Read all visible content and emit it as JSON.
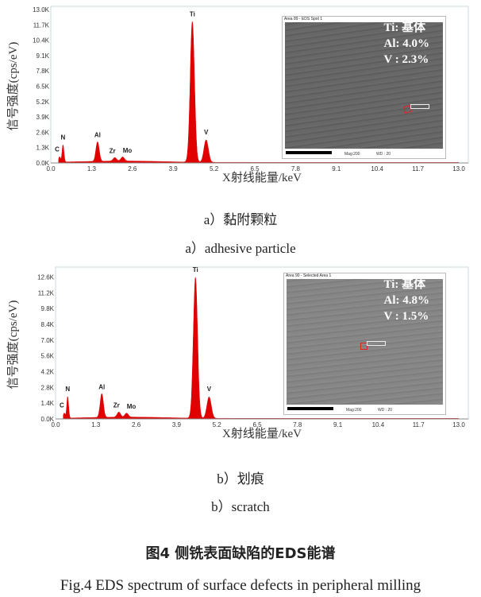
{
  "chart_data": [
    {
      "type": "area",
      "xlabel": "X射线能量/keV",
      "ylabel": "信号强度(cps/eV)",
      "xlim": [
        0,
        13.0
      ],
      "ylim": [
        0,
        13.0
      ],
      "x_ticks": [
        "0.0",
        "1.3",
        "2.6",
        "3.9",
        "5.2",
        "6.5",
        "7.8",
        "9.1",
        "10.4",
        "11.7",
        "13.0"
      ],
      "y_ticks": [
        "0.0K",
        "1.3K",
        "2.6K",
        "3.9K",
        "5.2K",
        "6.5K",
        "7.8K",
        "9.1K",
        "10.4K",
        "11.7K",
        "13.0K"
      ],
      "color": "#e00000",
      "peaks": [
        {
          "label": "C",
          "energy_keV": 0.28,
          "height_K": 0.45
        },
        {
          "label": "N",
          "energy_keV": 0.39,
          "height_K": 1.45
        },
        {
          "label": "Al",
          "energy_keV": 1.49,
          "height_K": 1.65
        },
        {
          "label": "Zr",
          "energy_keV": 2.04,
          "height_K": 0.3
        },
        {
          "label": "Mo",
          "energy_keV": 2.29,
          "height_K": 0.35
        },
        {
          "label": "Ti",
          "energy_keV": 4.51,
          "height_K": 11.9
        },
        {
          "label": "V",
          "energy_keV": 4.95,
          "height_K": 1.9
        }
      ],
      "inset": {
        "header": "Area 89 - EDS Spot 1",
        "composition": [
          "Ti: 基体",
          "Al: 4.0%",
          "V : 2.3%"
        ],
        "mag": "Mag:200",
        "wd": "WD : 20"
      },
      "caption_cn": "a）黏附颗粒",
      "caption_en": "a）adhesive particle"
    },
    {
      "type": "area",
      "xlabel": "X射线能量/keV",
      "ylabel": "信号强度(cps/eV)",
      "xlim": [
        0,
        13.0
      ],
      "ylim": [
        0,
        13.2
      ],
      "x_ticks": [
        "0.0",
        "1.3",
        "2.6",
        "3.9",
        "5.2",
        "6.5",
        "7.8",
        "9.1",
        "10.4",
        "11.7",
        "13.0"
      ],
      "y_ticks": [
        "0.0K",
        "1.4K",
        "2.8K",
        "4.2K",
        "5.6K",
        "7.0K",
        "8.4K",
        "9.8K",
        "11.2K",
        "12.6K"
      ],
      "color": "#e00000",
      "peaks": [
        {
          "label": "C",
          "energy_keV": 0.28,
          "height_K": 0.45
        },
        {
          "label": "N",
          "energy_keV": 0.39,
          "height_K": 1.9
        },
        {
          "label": "Al",
          "energy_keV": 1.49,
          "height_K": 2.1
        },
        {
          "label": "Zr",
          "energy_keV": 2.04,
          "height_K": 0.45
        },
        {
          "label": "Mo",
          "energy_keV": 2.29,
          "height_K": 0.35
        },
        {
          "label": "Ti",
          "energy_keV": 4.51,
          "height_K": 12.5
        },
        {
          "label": "V",
          "energy_keV": 4.95,
          "height_K": 1.9
        }
      ],
      "inset": {
        "header": "Area 90 - Selected Area 1",
        "composition": [
          "Ti: 基体",
          "Al: 4.8%",
          "V : 1.5%"
        ],
        "mag": "Mag:200",
        "wd": "WD : 20"
      },
      "caption_cn": "b）划痕",
      "caption_en": "b）scratch"
    }
  ],
  "figure": {
    "title_cn": "图4  侧铣表面缺陷的EDS能谱",
    "title_en": "Fig.4  EDS spectrum of surface defects in peripheral milling"
  }
}
